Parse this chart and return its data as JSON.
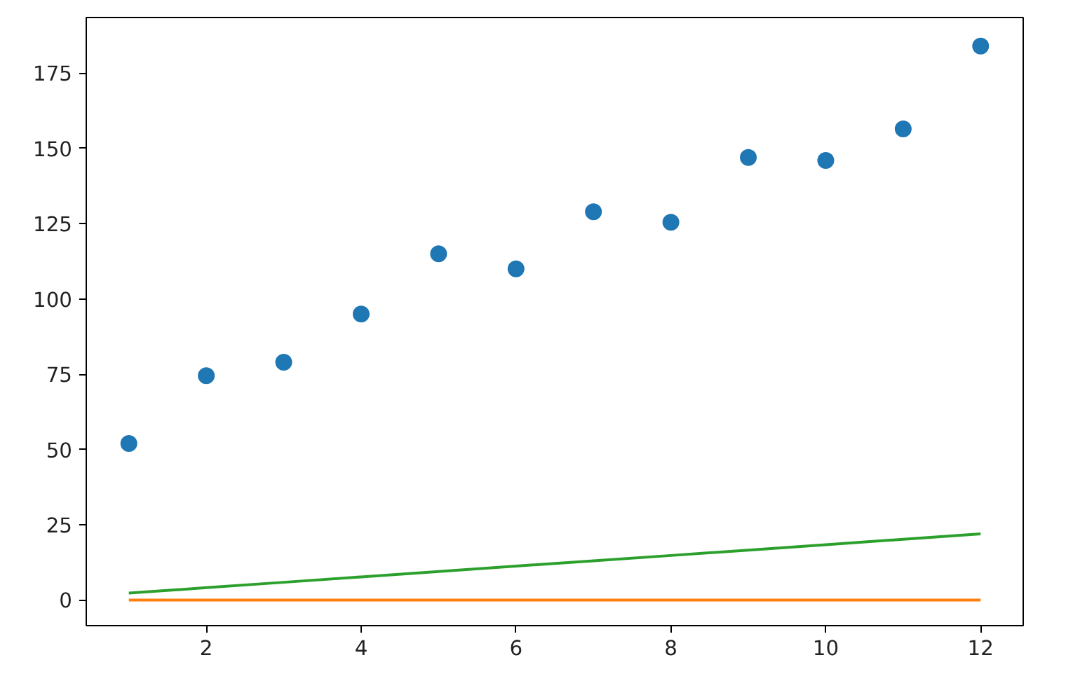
{
  "chart_data": {
    "type": "scatter",
    "x": [
      1,
      2,
      3,
      4,
      5,
      6,
      7,
      8,
      9,
      10,
      11,
      12
    ],
    "series": [
      {
        "color": "#1f77b4",
        "marker": "circle",
        "values": [
          52,
          74.5,
          79,
          95,
          115,
          110,
          129,
          125.5,
          147,
          146,
          156.5,
          184
        ]
      },
      {
        "type": "line",
        "color": "#ff7f0e",
        "values": [
          0,
          0,
          0,
          0,
          0,
          0,
          0,
          0,
          0,
          0,
          0,
          0
        ]
      },
      {
        "type": "line",
        "color": "#2ca02c",
        "values": [
          2.3,
          4.1,
          5.9,
          7.7,
          9.5,
          11.3,
          13,
          14.8,
          16.6,
          18.4,
          20.2,
          22
        ]
      }
    ],
    "xlim": [
      0.45,
      12.55
    ],
    "ylim": [
      -8.5,
      193.5
    ],
    "xticks": [
      2,
      4,
      6,
      8,
      10,
      12
    ],
    "yticks": [
      0,
      25,
      50,
      75,
      100,
      125,
      150,
      175
    ],
    "grid": false
  }
}
